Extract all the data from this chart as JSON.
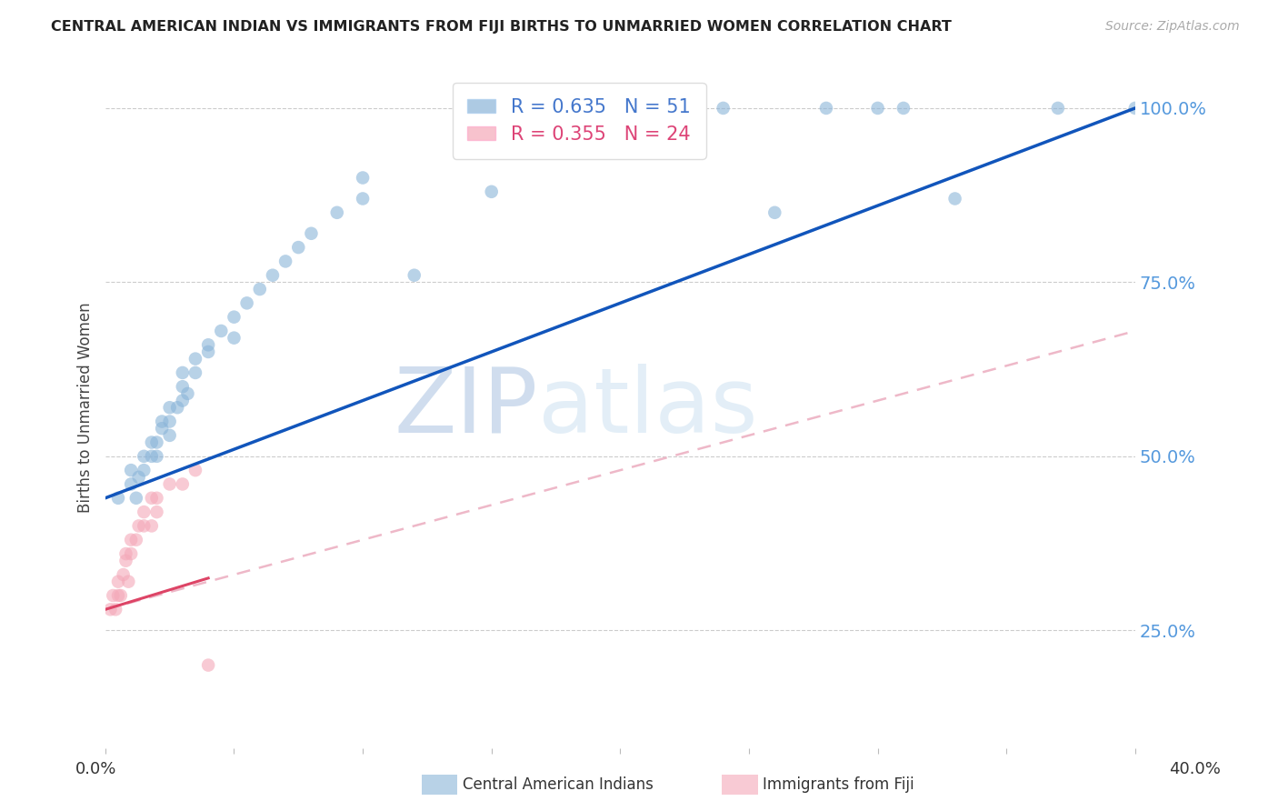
{
  "title": "CENTRAL AMERICAN INDIAN VS IMMIGRANTS FROM FIJI BIRTHS TO UNMARRIED WOMEN CORRELATION CHART",
  "source": "Source: ZipAtlas.com",
  "ylabel": "Births to Unmarried Women",
  "ytick_labels": [
    "100.0%",
    "75.0%",
    "50.0%",
    "25.0%"
  ],
  "ytick_values": [
    1.0,
    0.75,
    0.5,
    0.25
  ],
  "xlim": [
    0.0,
    0.4
  ],
  "ylim": [
    0.08,
    1.06
  ],
  "legend_blue_r": "R = 0.635",
  "legend_blue_n": "N = 51",
  "legend_pink_r": "R = 0.355",
  "legend_pink_n": "N = 24",
  "blue_color": "#8AB4D8",
  "pink_color": "#F4A8B8",
  "trendline_blue_color": "#1155BB",
  "trendline_pink_color": "#DD4466",
  "trendline_pink_dash_color": "#EEB8C8",
  "watermark_zip": "ZIP",
  "watermark_atlas": "atlas",
  "blue_x": [
    0.005,
    0.01,
    0.01,
    0.012,
    0.013,
    0.015,
    0.015,
    0.018,
    0.018,
    0.02,
    0.02,
    0.022,
    0.022,
    0.025,
    0.025,
    0.025,
    0.028,
    0.03,
    0.03,
    0.03,
    0.032,
    0.035,
    0.035,
    0.04,
    0.04,
    0.045,
    0.05,
    0.05,
    0.055,
    0.06,
    0.065,
    0.07,
    0.075,
    0.08,
    0.09,
    0.1,
    0.1,
    0.12,
    0.15,
    0.17,
    0.18,
    0.2,
    0.22,
    0.24,
    0.26,
    0.28,
    0.3,
    0.31,
    0.33,
    0.37,
    0.4
  ],
  "blue_y": [
    0.44,
    0.46,
    0.48,
    0.44,
    0.47,
    0.48,
    0.5,
    0.5,
    0.52,
    0.5,
    0.52,
    0.54,
    0.55,
    0.53,
    0.55,
    0.57,
    0.57,
    0.58,
    0.6,
    0.62,
    0.59,
    0.62,
    0.64,
    0.65,
    0.66,
    0.68,
    0.67,
    0.7,
    0.72,
    0.74,
    0.76,
    0.78,
    0.8,
    0.82,
    0.85,
    0.87,
    0.9,
    0.76,
    0.88,
    1.0,
    1.0,
    1.0,
    1.0,
    1.0,
    0.85,
    1.0,
    1.0,
    1.0,
    0.87,
    1.0,
    1.0
  ],
  "pink_x": [
    0.002,
    0.003,
    0.004,
    0.005,
    0.005,
    0.006,
    0.007,
    0.008,
    0.008,
    0.009,
    0.01,
    0.01,
    0.012,
    0.013,
    0.015,
    0.015,
    0.018,
    0.018,
    0.02,
    0.02,
    0.025,
    0.03,
    0.035,
    0.04
  ],
  "pink_y": [
    0.28,
    0.3,
    0.28,
    0.3,
    0.32,
    0.3,
    0.33,
    0.35,
    0.36,
    0.32,
    0.36,
    0.38,
    0.38,
    0.4,
    0.4,
    0.42,
    0.4,
    0.44,
    0.42,
    0.44,
    0.46,
    0.46,
    0.48,
    0.2
  ],
  "blue_trendline_x": [
    0.0,
    0.4
  ],
  "blue_trendline_y": [
    0.44,
    1.0
  ],
  "pink_trendline_x": [
    0.0,
    0.4
  ],
  "pink_trendline_y": [
    0.28,
    0.68
  ],
  "xtick_positions": [
    0.0,
    0.05,
    0.1,
    0.15,
    0.2,
    0.25,
    0.3,
    0.35,
    0.4
  ],
  "background_color": "#FFFFFF",
  "grid_color": "#CCCCCC"
}
